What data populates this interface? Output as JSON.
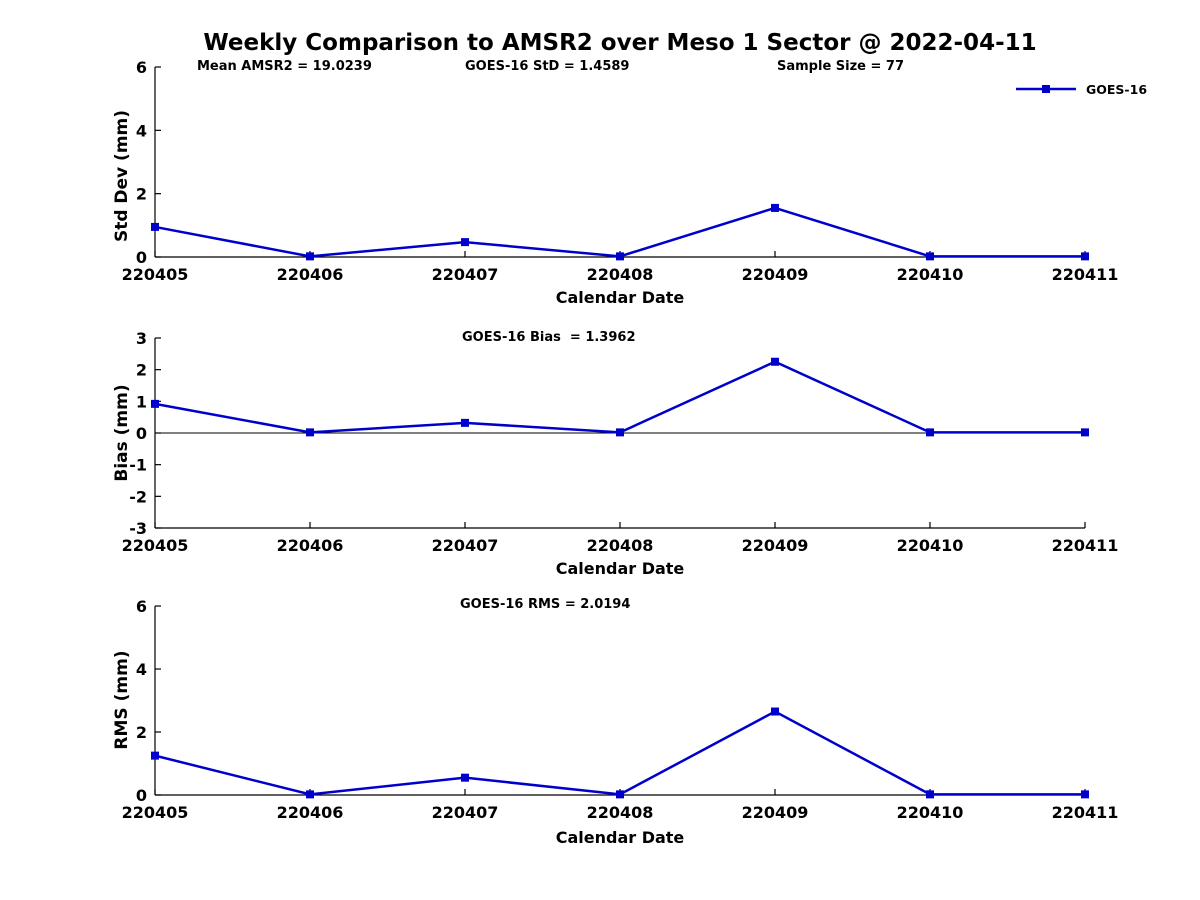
{
  "title": "Weekly Comparison to AMSR2 over Meso 1 Sector @ 2022-04-11",
  "annotations": {
    "mean_amsr2": "Mean AMSR2 = 19.0239",
    "goes16_std": "GOES-16 StD = 1.4589",
    "sample_size": "Sample Size = 77",
    "goes16_bias": "GOES-16 Bias  = 1.3962",
    "goes16_rms": "GOES-16 RMS = 2.0194"
  },
  "legend": {
    "label": "GOES-16",
    "color": "#0000cc",
    "position": "top-right"
  },
  "chart_data": [
    {
      "type": "line",
      "name": "std-dev-subplot",
      "categories": [
        "220405",
        "220406",
        "220407",
        "220408",
        "220409",
        "220410",
        "220411"
      ],
      "series": [
        {
          "name": "GOES-16",
          "values": [
            0.95,
            0.02,
            0.47,
            0.02,
            1.55,
            0.02,
            0.02
          ]
        }
      ],
      "xlabel": "Calendar Date",
      "ylabel": "Std Dev (mm)",
      "ylim": [
        0,
        6
      ],
      "yticks": [
        0,
        2,
        4,
        6
      ],
      "zero_line": false,
      "grid": false,
      "marker": "square"
    },
    {
      "type": "line",
      "name": "bias-subplot",
      "categories": [
        "220405",
        "220406",
        "220407",
        "220408",
        "220409",
        "220410",
        "220411"
      ],
      "series": [
        {
          "name": "GOES-16",
          "values": [
            0.92,
            0.02,
            0.32,
            0.02,
            2.25,
            0.02,
            0.02
          ]
        }
      ],
      "xlabel": "Calendar Date",
      "ylabel": "Bias (mm)",
      "ylim": [
        -3,
        3
      ],
      "yticks": [
        -3,
        -2,
        -1,
        0,
        1,
        2,
        3
      ],
      "zero_line": true,
      "grid": false,
      "marker": "square"
    },
    {
      "type": "line",
      "name": "rms-subplot",
      "categories": [
        "220405",
        "220406",
        "220407",
        "220408",
        "220409",
        "220410",
        "220411"
      ],
      "series": [
        {
          "name": "GOES-16",
          "values": [
            1.25,
            0.02,
            0.55,
            0.02,
            2.65,
            0.02,
            0.02
          ]
        }
      ],
      "xlabel": "Calendar Date",
      "ylabel": "RMS (mm)",
      "ylim": [
        0,
        6
      ],
      "yticks": [
        0,
        2,
        4,
        6
      ],
      "zero_line": false,
      "grid": false,
      "marker": "square"
    }
  ]
}
